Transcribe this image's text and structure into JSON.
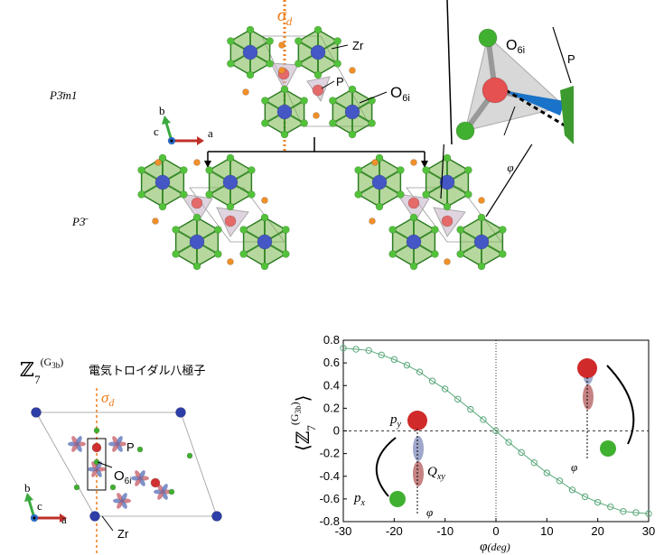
{
  "top": {
    "sigma_d": [
      "σ",
      "d"
    ],
    "zr": "Zr",
    "p": "P",
    "o6i": [
      "O",
      "6i"
    ],
    "group1": "P3̄m1",
    "group2": "P3̄",
    "axes": {
      "b": "b",
      "c": "c",
      "a": "a"
    },
    "inset_p": "P",
    "inset_o6i": [
      "O",
      "6i"
    ],
    "phi": "φ"
  },
  "bottom_left": {
    "title": [
      "ℤ",
      "7",
      "(G",
      "3b",
      ")"
    ],
    "subtitle": "電気トロイダル八極子",
    "sigma_d": [
      "σ",
      "d"
    ],
    "p": "P",
    "o6i": [
      "O",
      "6i"
    ],
    "zr": "Zr",
    "axes": {
      "b": "b",
      "c": "c",
      "a": "a"
    }
  },
  "chart_data": {
    "type": "line",
    "ylabel": [
      "⟨ℤ",
      "7",
      "(G",
      "3b",
      ")",
      "⟩"
    ],
    "xlabel": [
      "φ",
      "(deg)"
    ],
    "x": [
      -30,
      -27.5,
      -25,
      -22.5,
      -20,
      -17.5,
      -15,
      -12.5,
      -10,
      -7.5,
      -5,
      -2.5,
      0,
      2.5,
      5,
      7.5,
      10,
      12.5,
      15,
      17.5,
      20,
      22.5,
      25,
      27.5,
      30
    ],
    "series": [
      {
        "color": "#5aa87a",
        "values": [
          0.73,
          0.72,
          0.71,
          0.67,
          0.63,
          0.58,
          0.52,
          0.44,
          0.37,
          0.28,
          0.19,
          0.1,
          0,
          -0.1,
          -0.19,
          -0.28,
          -0.37,
          -0.44,
          -0.52,
          -0.58,
          -0.63,
          -0.67,
          -0.71,
          -0.72,
          -0.73
        ]
      }
    ],
    "xlim": [
      -30,
      30
    ],
    "xticks": [
      -30,
      -20,
      -10,
      0,
      10,
      20,
      30
    ],
    "ylim": [
      -0.8,
      0.8
    ],
    "yticks": [
      -0.8,
      -0.6,
      -0.4,
      -0.2,
      0,
      0.2,
      0.4,
      0.6,
      0.8
    ],
    "annotations": {
      "py": [
        "p",
        "y"
      ],
      "px": [
        "p",
        "x"
      ],
      "qxy": [
        "Q",
        "xy"
      ],
      "phi_left": "φ",
      "phi_right": "φ"
    }
  }
}
